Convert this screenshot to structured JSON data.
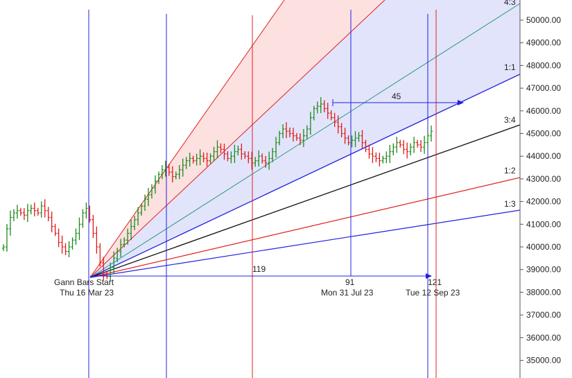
{
  "chart_data": {
    "type": "candlestick",
    "title": "",
    "ylim": [
      34600,
      51000
    ],
    "y_ticks": [
      "50000.00",
      "49000.00",
      "48000.00",
      "47000.00",
      "46000.00",
      "45000.00",
      "44000.00",
      "43000.00",
      "42000.00",
      "41000.00",
      "40000.00",
      "39000.00",
      "38000.00",
      "37000.00",
      "36000.00",
      "35000.00"
    ],
    "grid": false,
    "colors": {
      "up": "#1a8a1a",
      "down": "#e01818",
      "blue_line": "#2020e0",
      "red_line": "#e02020",
      "fan_blue_fill": "#e2e4fb",
      "fan_red_fill": "#fde0e0",
      "teal_line": "#2a9a80"
    },
    "gann_start": {
      "label": "Gann Bars Start",
      "date": "Thu 16 Mar 23",
      "price": 38550
    },
    "markers": [
      {
        "bars": "91",
        "date": "Mon 31 Jul 23"
      },
      {
        "bars": "121",
        "date": "Tue 12 Sep 23"
      }
    ],
    "bar_count_label": "119",
    "horizontal_count": "45",
    "fan_labels": [
      {
        "label": "4:3"
      },
      {
        "label": "1:1"
      },
      {
        "label": "3:4"
      },
      {
        "label": "1:2"
      },
      {
        "label": "1:3"
      }
    ],
    "price_path": [
      40000,
      40800,
      41300,
      41500,
      41600,
      41500,
      41400,
      41600,
      41700,
      41600,
      41500,
      41800,
      41600,
      41300,
      40900,
      40600,
      40200,
      40000,
      39800,
      40000,
      40300,
      40600,
      41000,
      41500,
      41700,
      41200,
      40600,
      40000,
      39300,
      38800,
      38700,
      39100,
      39500,
      39800,
      40100,
      40300,
      40600,
      40900,
      41200,
      41500,
      41800,
      42100,
      42300,
      42600,
      42900,
      43200,
      43400,
      43500,
      43300,
      43100,
      43200,
      43400,
      43600,
      43800,
      43900,
      43800,
      43900,
      44000,
      43900,
      43800,
      44000,
      44200,
      44400,
      44300,
      44100,
      43900,
      44000,
      44200,
      44300,
      44100,
      44000,
      43900,
      43700,
      43800,
      44000,
      43800,
      43700,
      43900,
      44200,
      44600,
      45000,
      45200,
      45100,
      45000,
      44900,
      44800,
      44700,
      44900,
      45200,
      45700,
      46100,
      46200,
      46300,
      46100,
      45900,
      45700,
      45500,
      45300,
      45000,
      44800,
      44600,
      44700,
      44800,
      44900,
      44600,
      44300,
      44100,
      44000,
      43900,
      43800,
      43900,
      44000,
      44200,
      44400,
      44600,
      44500,
      44300,
      44200,
      44400,
      44600,
      44500,
      44400,
      44600,
      44900,
      45100
    ]
  }
}
